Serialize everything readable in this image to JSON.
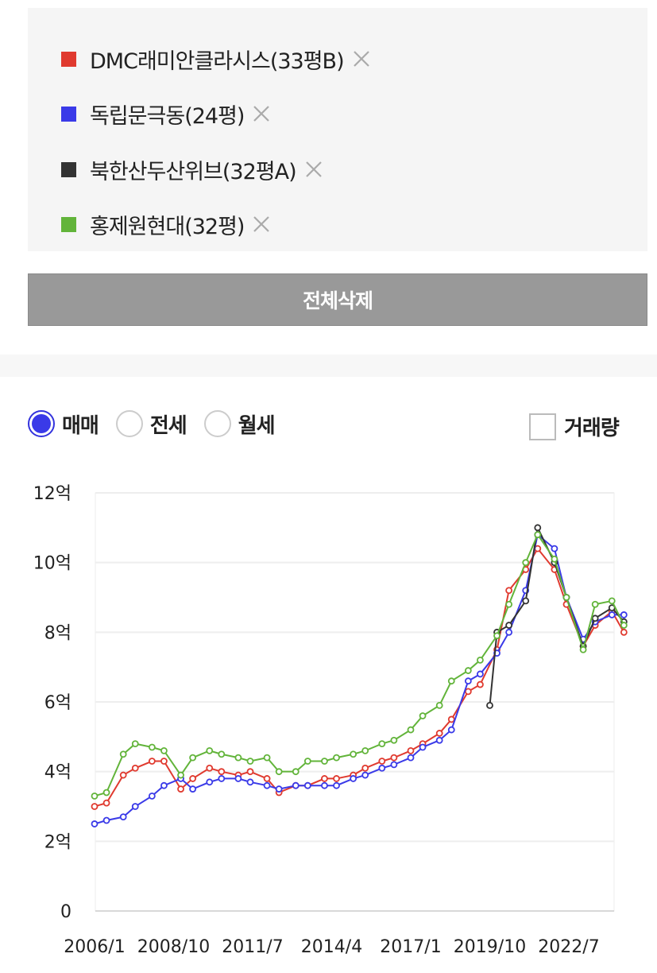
{
  "compare": {
    "items": [
      {
        "label": "DMC래미안클라시스(33평B)",
        "color": "#e03a2f"
      },
      {
        "label": "독립문극동(24평)",
        "color": "#3a3ae8"
      },
      {
        "label": "북한산두산위브(32평A)",
        "color": "#333333"
      },
      {
        "label": "홍제원현대(32평)",
        "color": "#62b43a"
      }
    ],
    "delete_all_label": "전체삭제"
  },
  "price_type": {
    "options": [
      "매매",
      "전세",
      "월세"
    ],
    "selected": "매매"
  },
  "volume_toggle": {
    "label": "거래량",
    "checked": false
  },
  "chart_data": {
    "type": "line",
    "ylim": [
      0,
      12
    ],
    "y_ticks": [
      "0",
      "2억",
      "4억",
      "6억",
      "8억",
      "10억",
      "12억"
    ],
    "x_ticks": [
      "2006/1",
      "2008/10",
      "2011/7",
      "2014/4",
      "2017/1",
      "2019/10",
      "2022/7"
    ],
    "grid": true,
    "unit": "억",
    "series": [
      {
        "name": "DMC래미안클라시스(33평B)",
        "color": "#e03a2f",
        "points": [
          [
            "2006/1",
            3.0
          ],
          [
            "2006/6",
            3.1
          ],
          [
            "2007/1",
            3.9
          ],
          [
            "2007/6",
            4.1
          ],
          [
            "2008/1",
            4.3
          ],
          [
            "2008/6",
            4.3
          ],
          [
            "2009/1",
            3.5
          ],
          [
            "2009/6",
            3.8
          ],
          [
            "2010/1",
            4.1
          ],
          [
            "2010/6",
            4.0
          ],
          [
            "2011/1",
            3.9
          ],
          [
            "2011/6",
            4.0
          ],
          [
            "2012/1",
            3.8
          ],
          [
            "2012/6",
            3.4
          ],
          [
            "2013/1",
            3.6
          ],
          [
            "2013/6",
            3.6
          ],
          [
            "2014/1",
            3.8
          ],
          [
            "2014/6",
            3.8
          ],
          [
            "2015/1",
            3.9
          ],
          [
            "2015/6",
            4.1
          ],
          [
            "2016/1",
            4.3
          ],
          [
            "2016/6",
            4.4
          ],
          [
            "2017/1",
            4.6
          ],
          [
            "2017/6",
            4.8
          ],
          [
            "2018/1",
            5.1
          ],
          [
            "2018/6",
            5.5
          ],
          [
            "2019/1",
            6.3
          ],
          [
            "2019/6",
            6.5
          ],
          [
            "2020/1",
            7.5
          ],
          [
            "2020/6",
            9.2
          ],
          [
            "2021/1",
            9.8
          ],
          [
            "2021/6",
            10.4
          ],
          [
            "2022/1",
            9.8
          ],
          [
            "2022/6",
            8.8
          ],
          [
            "2023/1",
            7.6
          ],
          [
            "2023/6",
            8.2
          ],
          [
            "2024/1",
            8.6
          ],
          [
            "2024/6",
            8.0
          ]
        ]
      },
      {
        "name": "독립문극동(24평)",
        "color": "#3a3ae8",
        "points": [
          [
            "2006/1",
            2.5
          ],
          [
            "2006/6",
            2.6
          ],
          [
            "2007/1",
            2.7
          ],
          [
            "2007/6",
            3.0
          ],
          [
            "2008/1",
            3.3
          ],
          [
            "2008/6",
            3.6
          ],
          [
            "2009/1",
            3.8
          ],
          [
            "2009/6",
            3.5
          ],
          [
            "2010/1",
            3.7
          ],
          [
            "2010/6",
            3.8
          ],
          [
            "2011/1",
            3.8
          ],
          [
            "2011/6",
            3.7
          ],
          [
            "2012/1",
            3.6
          ],
          [
            "2012/6",
            3.5
          ],
          [
            "2013/1",
            3.6
          ],
          [
            "2013/6",
            3.6
          ],
          [
            "2014/1",
            3.6
          ],
          [
            "2014/6",
            3.6
          ],
          [
            "2015/1",
            3.8
          ],
          [
            "2015/6",
            3.9
          ],
          [
            "2016/1",
            4.1
          ],
          [
            "2016/6",
            4.2
          ],
          [
            "2017/1",
            4.4
          ],
          [
            "2017/6",
            4.7
          ],
          [
            "2018/1",
            4.9
          ],
          [
            "2018/6",
            5.2
          ],
          [
            "2019/1",
            6.6
          ],
          [
            "2019/6",
            6.8
          ],
          [
            "2020/1",
            7.4
          ],
          [
            "2020/6",
            8.0
          ],
          [
            "2021/1",
            9.2
          ],
          [
            "2021/6",
            10.8
          ],
          [
            "2022/1",
            10.4
          ],
          [
            "2022/6",
            9.0
          ],
          [
            "2023/1",
            7.8
          ],
          [
            "2023/6",
            8.3
          ],
          [
            "2024/1",
            8.5
          ],
          [
            "2024/6",
            8.5
          ]
        ]
      },
      {
        "name": "북한산두산위브(32평A)",
        "color": "#333333",
        "points": [
          [
            "2019/10",
            5.9
          ],
          [
            "2020/1",
            8.0
          ],
          [
            "2020/6",
            8.2
          ],
          [
            "2021/1",
            8.9
          ],
          [
            "2021/6",
            11.0
          ],
          [
            "2022/1",
            10.0
          ],
          [
            "2022/6",
            9.0
          ],
          [
            "2023/1",
            7.6
          ],
          [
            "2023/6",
            8.4
          ],
          [
            "2024/1",
            8.7
          ],
          [
            "2024/6",
            8.3
          ]
        ]
      },
      {
        "name": "홍제원현대(32평)",
        "color": "#62b43a",
        "points": [
          [
            "2006/1",
            3.3
          ],
          [
            "2006/6",
            3.4
          ],
          [
            "2007/1",
            4.5
          ],
          [
            "2007/6",
            4.8
          ],
          [
            "2008/1",
            4.7
          ],
          [
            "2008/6",
            4.6
          ],
          [
            "2009/1",
            3.9
          ],
          [
            "2009/6",
            4.4
          ],
          [
            "2010/1",
            4.6
          ],
          [
            "2010/6",
            4.5
          ],
          [
            "2011/1",
            4.4
          ],
          [
            "2011/6",
            4.3
          ],
          [
            "2012/1",
            4.4
          ],
          [
            "2012/6",
            4.0
          ],
          [
            "2013/1",
            4.0
          ],
          [
            "2013/6",
            4.3
          ],
          [
            "2014/1",
            4.3
          ],
          [
            "2014/6",
            4.4
          ],
          [
            "2015/1",
            4.5
          ],
          [
            "2015/6",
            4.6
          ],
          [
            "2016/1",
            4.8
          ],
          [
            "2016/6",
            4.9
          ],
          [
            "2017/1",
            5.2
          ],
          [
            "2017/6",
            5.6
          ],
          [
            "2018/1",
            5.9
          ],
          [
            "2018/6",
            6.6
          ],
          [
            "2019/1",
            6.9
          ],
          [
            "2019/6",
            7.2
          ],
          [
            "2020/1",
            7.9
          ],
          [
            "2020/6",
            8.8
          ],
          [
            "2021/1",
            10.0
          ],
          [
            "2021/6",
            10.8
          ],
          [
            "2022/1",
            10.1
          ],
          [
            "2022/6",
            9.0
          ],
          [
            "2023/1",
            7.5
          ],
          [
            "2023/6",
            8.8
          ],
          [
            "2024/1",
            8.9
          ],
          [
            "2024/6",
            8.2
          ]
        ]
      }
    ]
  }
}
